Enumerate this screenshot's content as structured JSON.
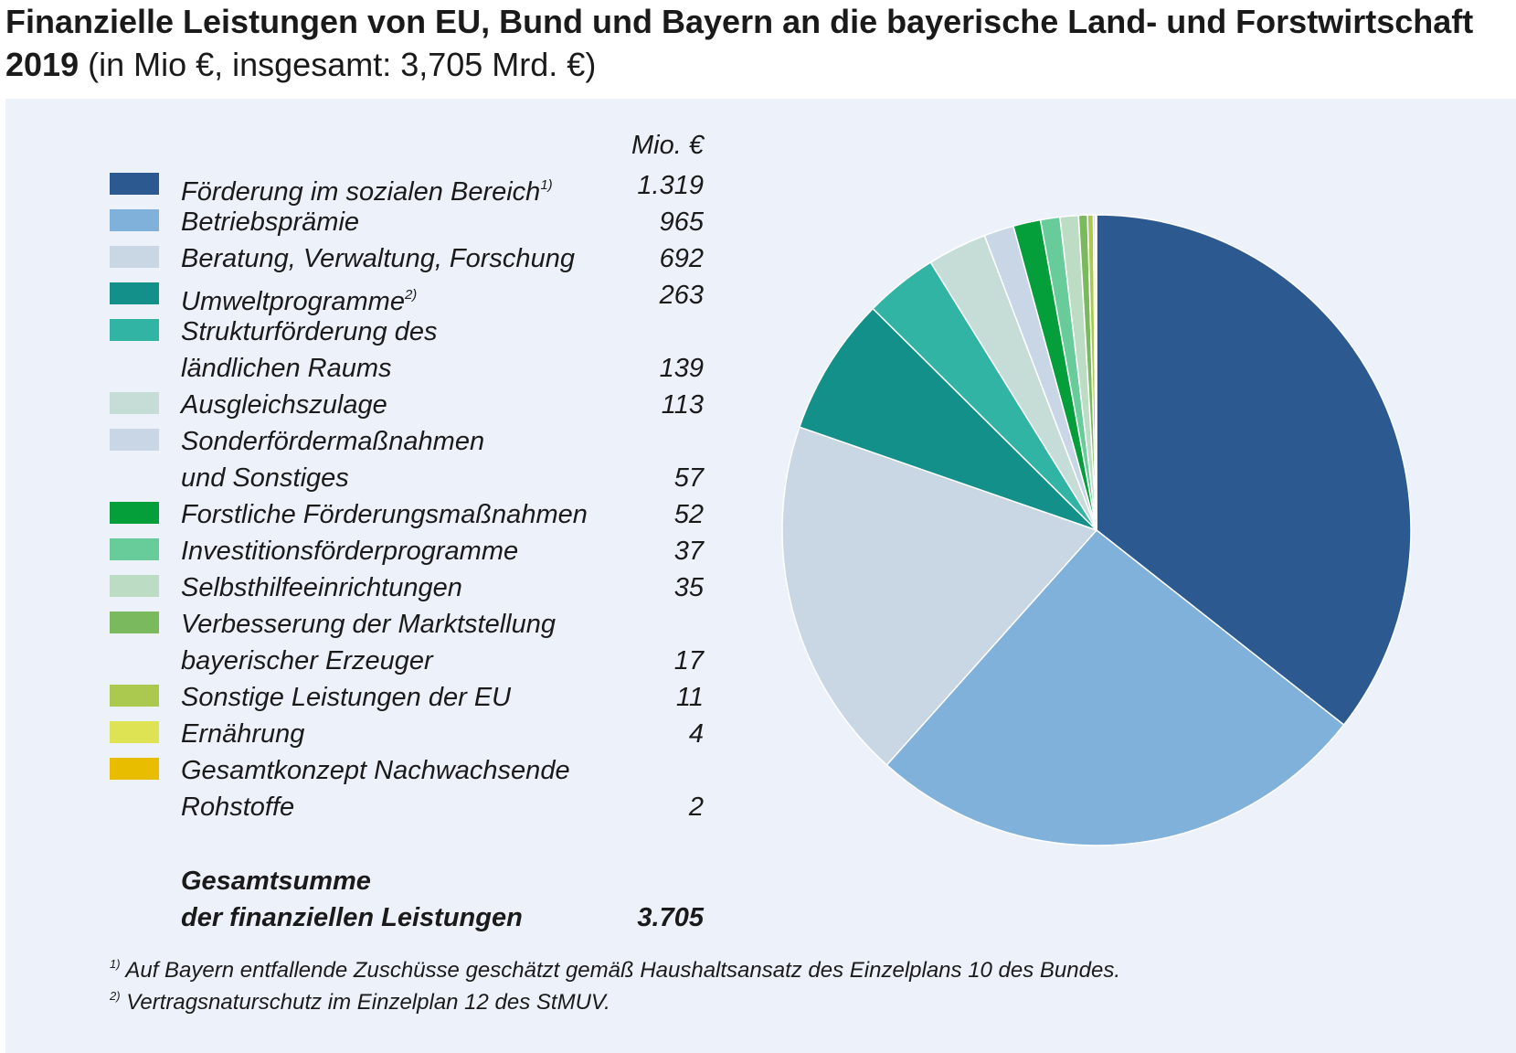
{
  "title": {
    "bold": "Finanzielle Leistungen von EU, Bund und Bayern an die bayerische Land- und Forstwirtschaft 2019",
    "normal": " (in Mio €, insgesamt: 3,705 Mrd. €)"
  },
  "unit_header": "Mio. €",
  "chart_data": {
    "type": "pie",
    "unit": "Mio. €",
    "slices": [
      {
        "line1": "Förderung im sozialen Bereich",
        "line2": "",
        "sup": "1)",
        "value": 1319,
        "display": "1.319",
        "color": "#2c5a90"
      },
      {
        "line1": "Betriebsprämie",
        "line2": "",
        "sup": "",
        "value": 965,
        "display": "965",
        "color": "#7fb1da"
      },
      {
        "line1": "Beratung, Verwaltung, Forschung",
        "line2": "",
        "sup": "",
        "value": 692,
        "display": "692",
        "color": "#c9d6e4"
      },
      {
        "line1": "Umweltprogramme",
        "line2": "",
        "sup": "2)",
        "value": 263,
        "display": "263",
        "color": "#14908a"
      },
      {
        "line1": "Strukturförderung des",
        "line2": "ländlichen Raums",
        "sup": "",
        "value": 139,
        "display": "139",
        "color": "#32b4a4"
      },
      {
        "line1": "Ausgleichszulage",
        "line2": "",
        "sup": "",
        "value": 113,
        "display": "113",
        "color": "#c6ddd7"
      },
      {
        "line1": "Sonderfördermaßnahmen",
        "line2": "und Sonstiges",
        "sup": "",
        "value": 57,
        "display": "57",
        "color": "#c8d6e5"
      },
      {
        "line1": "Forstliche Förderungsmaßnahmen",
        "line2": "",
        "sup": "",
        "value": 52,
        "display": "52",
        "color": "#049e3b"
      },
      {
        "line1": "Investitionsförderprogramme",
        "line2": "",
        "sup": "",
        "value": 37,
        "display": "37",
        "color": "#67cc9a"
      },
      {
        "line1": "Selbsthilfeeinrichtungen",
        "line2": "",
        "sup": "",
        "value": 35,
        "display": "35",
        "color": "#bcdcc3"
      },
      {
        "line1": "Verbesserung der Marktstellung",
        "line2": "bayerischer Erzeuger",
        "sup": "",
        "value": 17,
        "display": "17",
        "color": "#7bb95e"
      },
      {
        "line1": "Sonstige Leistungen der EU",
        "line2": "",
        "sup": "",
        "value": 11,
        "display": "11",
        "color": "#abc94f"
      },
      {
        "line1": "Ernährung",
        "line2": "",
        "sup": "",
        "value": 4,
        "display": "4",
        "color": "#dde352"
      },
      {
        "line1": "Gesamtkonzept Nachwachsende",
        "line2": "Rohstoffe",
        "sup": "",
        "value": 2,
        "display": "2",
        "color": "#e8bd00"
      }
    ]
  },
  "total": {
    "line1": "Gesamtsumme",
    "line2": "der finanziellen Leistungen",
    "value": "3.705"
  },
  "footnotes": [
    {
      "mark": "1)",
      "text": " Auf Bayern entfallende Zuschüsse geschätzt gemäß Haushaltsansatz des Einzelplans 10 des Bundes."
    },
    {
      "mark": "2)",
      "text": " Vertragsnaturschutz im Einzelplan 12 des StMUV."
    }
  ]
}
